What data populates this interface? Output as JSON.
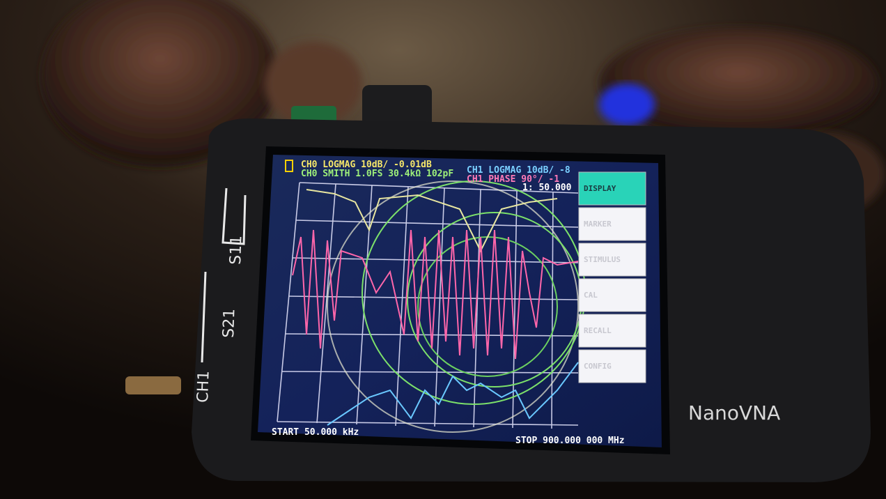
{
  "screen": {
    "header_left": [
      "CH0 LOGMAG 10dB/ -0.01dB",
      "CH0 SMITH 1.0FS 30.4kΩ 102pF"
    ],
    "header_right": [
      "CH1 LOGMAG 10dB/ -8",
      "CH1 PHASE 90°/ -1"
    ],
    "marker": "1: 50.000",
    "menu": [
      "DISPLAY",
      "MARKER",
      "STIMULUS",
      "CAL",
      "RECALL",
      "CONFIG"
    ],
    "start": "START 50.000 kHz",
    "stop": "STOP 900.000 000 MHz"
  },
  "device": {
    "port_labels": [
      "S11",
      "S21",
      "CH1"
    ],
    "brand": "NanoVNA"
  }
}
